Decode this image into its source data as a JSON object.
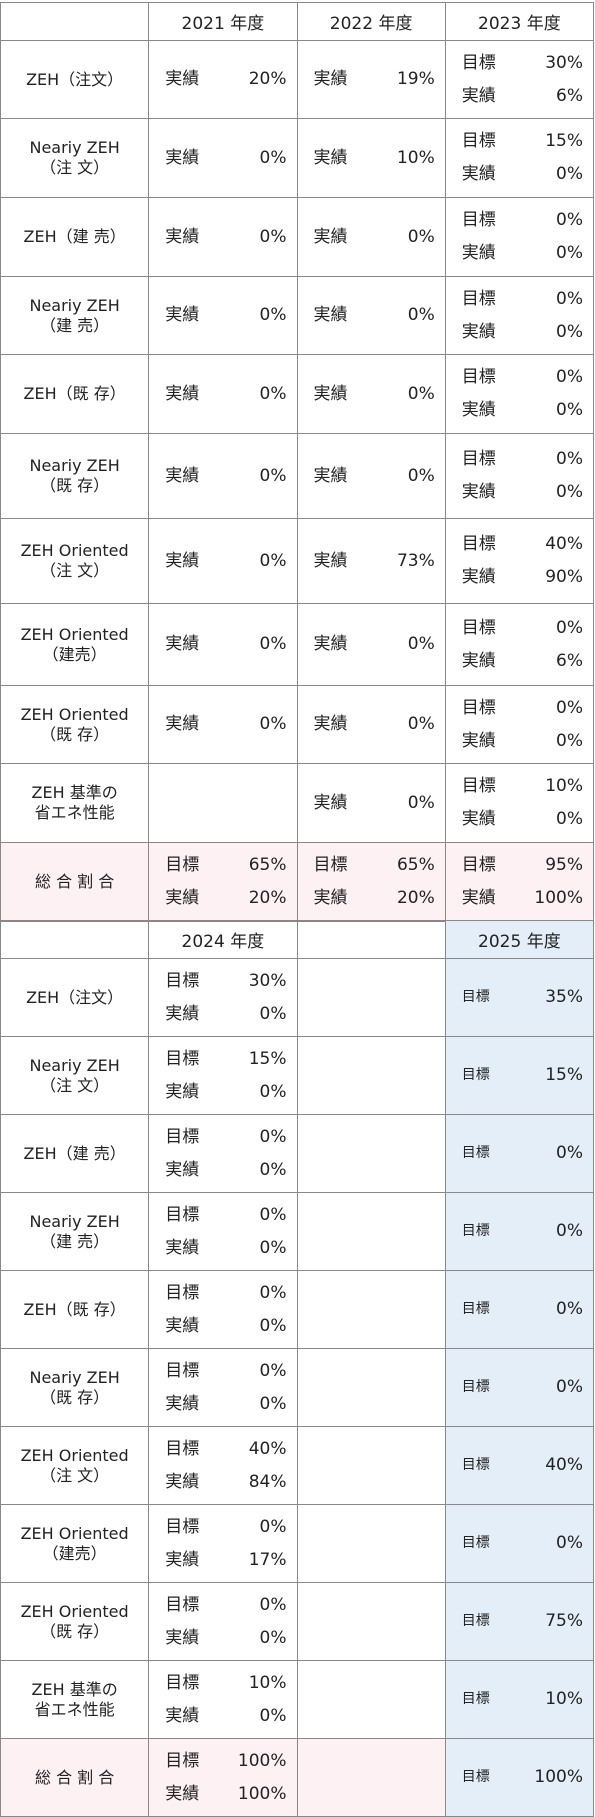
{
  "tables": [
    {
      "header": [
        null,
        "2021 年度",
        "2022 年度",
        "2023 年度"
      ],
      "rows": [
        {
          "label": [
            "ZEH（注文）"
          ],
          "cells": [
            [
              {
                "k": "実績",
                "v": "20%"
              }
            ],
            [
              {
                "k": "実績",
                "v": "19%"
              }
            ],
            [
              {
                "k": "目標",
                "v": "30%"
              },
              {
                "k": "実績",
                "v": "6%"
              }
            ]
          ]
        },
        {
          "label": [
            "Neariy ZEH",
            "（注 文）"
          ],
          "cells": [
            [
              {
                "k": "実績",
                "v": "0%"
              }
            ],
            [
              {
                "k": "実績",
                "v": "10%"
              }
            ],
            [
              {
                "k": "目標",
                "v": "15%"
              },
              {
                "k": "実績",
                "v": "0%"
              }
            ]
          ]
        },
        {
          "label": [
            "ZEH（建 売）"
          ],
          "cells": [
            [
              {
                "k": "実績",
                "v": "0%"
              }
            ],
            [
              {
                "k": "実績",
                "v": "0%"
              }
            ],
            [
              {
                "k": "目標",
                "v": "0%"
              },
              {
                "k": "実績",
                "v": "0%"
              }
            ]
          ]
        },
        {
          "label": [
            "Neariy ZEH",
            "（建 売）"
          ],
          "cells": [
            [
              {
                "k": "実績",
                "v": "0%"
              }
            ],
            [
              {
                "k": "実績",
                "v": "0%"
              }
            ],
            [
              {
                "k": "目標",
                "v": "0%"
              },
              {
                "k": "実績",
                "v": "0%"
              }
            ]
          ]
        },
        {
          "label": [
            "ZEH（既 存）"
          ],
          "cells": [
            [
              {
                "k": "実績",
                "v": "0%"
              }
            ],
            [
              {
                "k": "実績",
                "v": "0%"
              }
            ],
            [
              {
                "k": "目標",
                "v": "0%"
              },
              {
                "k": "実績",
                "v": "0%"
              }
            ]
          ]
        },
        {
          "label": [
            "Neariy ZEH",
            "（既 存）"
          ],
          "cells": [
            [
              {
                "k": "実績",
                "v": "0%"
              }
            ],
            [
              {
                "k": "実績",
                "v": "0%"
              }
            ],
            [
              {
                "k": "目標",
                "v": "0%"
              },
              {
                "k": "実績",
                "v": "0%"
              }
            ]
          ]
        },
        {
          "label": [
            "ZEH Oriented",
            "（注 文）"
          ],
          "cells": [
            [
              {
                "k": "実績",
                "v": "0%"
              }
            ],
            [
              {
                "k": "実績",
                "v": "73%"
              }
            ],
            [
              {
                "k": "目標",
                "v": "40%"
              },
              {
                "k": "実績",
                "v": "90%"
              }
            ]
          ]
        },
        {
          "label": [
            "ZEH Oriented",
            "（建売）"
          ],
          "cells": [
            [
              {
                "k": "実績",
                "v": "0%"
              }
            ],
            [
              {
                "k": "実績",
                "v": "0%"
              }
            ],
            [
              {
                "k": "目標",
                "v": "0%"
              },
              {
                "k": "実績",
                "v": "6%"
              }
            ]
          ]
        },
        {
          "label": [
            "ZEH Oriented",
            "（既 存）"
          ],
          "cells": [
            [
              {
                "k": "実績",
                "v": "0%"
              }
            ],
            [
              {
                "k": "実績",
                "v": "0%"
              }
            ],
            [
              {
                "k": "目標",
                "v": "0%"
              },
              {
                "k": "実績",
                "v": "0%"
              }
            ]
          ]
        },
        {
          "label": [
            "ZEH 基準の",
            "省エネ性能"
          ],
          "cells": [
            null,
            [
              {
                "k": "実績",
                "v": "0%"
              }
            ],
            [
              {
                "k": "目標",
                "v": "10%"
              },
              {
                "k": "実績",
                "v": "0%"
              }
            ]
          ]
        },
        {
          "label": [
            "総 合 割 合"
          ],
          "total": true,
          "cells": [
            [
              {
                "k": "目標",
                "v": "65%"
              },
              {
                "k": "実績",
                "v": "20%"
              }
            ],
            [
              {
                "k": "目標",
                "v": "65%"
              },
              {
                "k": "実績",
                "v": "20%"
              }
            ],
            [
              {
                "k": "目標",
                "v": "95%"
              },
              {
                "k": "実績",
                "v": "100%"
              }
            ]
          ]
        }
      ]
    },
    {
      "header": [
        null,
        "2024 年度",
        null,
        "2025 年度"
      ],
      "rows": [
        {
          "label": [
            "ZEH（注文）"
          ],
          "cells": [
            [
              {
                "k": "目標",
                "v": "30%"
              },
              {
                "k": "実績",
                "v": "0%"
              }
            ],
            null,
            [
              {
                "k": "目標",
                "v": "35%"
              }
            ]
          ]
        },
        {
          "label": [
            "Neariy ZEH",
            "（注 文）"
          ],
          "cells": [
            [
              {
                "k": "目標",
                "v": "15%"
              },
              {
                "k": "実績",
                "v": "0%"
              }
            ],
            null,
            [
              {
                "k": "目標",
                "v": "15%"
              }
            ]
          ]
        },
        {
          "label": [
            "ZEH（建 売）"
          ],
          "cells": [
            [
              {
                "k": "目標",
                "v": "0%"
              },
              {
                "k": "実績",
                "v": "0%"
              }
            ],
            null,
            [
              {
                "k": "目標",
                "v": "0%"
              }
            ]
          ]
        },
        {
          "label": [
            "Neariy ZEH",
            "（建 売）"
          ],
          "cells": [
            [
              {
                "k": "目標",
                "v": "0%"
              },
              {
                "k": "実績",
                "v": "0%"
              }
            ],
            null,
            [
              {
                "k": "目標",
                "v": "0%"
              }
            ]
          ]
        },
        {
          "label": [
            "ZEH（既 存）"
          ],
          "cells": [
            [
              {
                "k": "目標",
                "v": "0%"
              },
              {
                "k": "実績",
                "v": "0%"
              }
            ],
            null,
            [
              {
                "k": "目標",
                "v": "0%"
              }
            ]
          ]
        },
        {
          "label": [
            "Neariy ZEH",
            "（既 存）"
          ],
          "cells": [
            [
              {
                "k": "目標",
                "v": "0%"
              },
              {
                "k": "実績",
                "v": "0%"
              }
            ],
            null,
            [
              {
                "k": "目標",
                "v": "0%"
              }
            ]
          ]
        },
        {
          "label": [
            "ZEH Oriented",
            "（注 文）"
          ],
          "cells": [
            [
              {
                "k": "目標",
                "v": "40%"
              },
              {
                "k": "実績",
                "v": "84%"
              }
            ],
            null,
            [
              {
                "k": "目標",
                "v": "40%"
              }
            ]
          ]
        },
        {
          "label": [
            "ZEH Oriented",
            "（建売）"
          ],
          "cells": [
            [
              {
                "k": "目標",
                "v": "0%"
              },
              {
                "k": "実績",
                "v": "17%"
              }
            ],
            null,
            [
              {
                "k": "目標",
                "v": "0%"
              }
            ]
          ]
        },
        {
          "label": [
            "ZEH Oriented",
            "（既 存）"
          ],
          "cells": [
            [
              {
                "k": "目標",
                "v": "0%"
              },
              {
                "k": "実績",
                "v": "0%"
              }
            ],
            null,
            [
              {
                "k": "目標",
                "v": "75%"
              }
            ]
          ]
        },
        {
          "label": [
            "ZEH 基準の",
            "省エネ性能"
          ],
          "cells": [
            [
              {
                "k": "目標",
                "v": "10%"
              },
              {
                "k": "実績",
                "v": "0%"
              }
            ],
            null,
            [
              {
                "k": "目標",
                "v": "10%"
              }
            ]
          ]
        },
        {
          "label": [
            "総 合 割 合"
          ],
          "total": true,
          "cells": [
            [
              {
                "k": "目標",
                "v": "100%"
              },
              {
                "k": "実績",
                "v": "100%"
              }
            ],
            null,
            [
              {
                "k": "目標",
                "v": "100%"
              }
            ]
          ]
        }
      ]
    }
  ]
}
